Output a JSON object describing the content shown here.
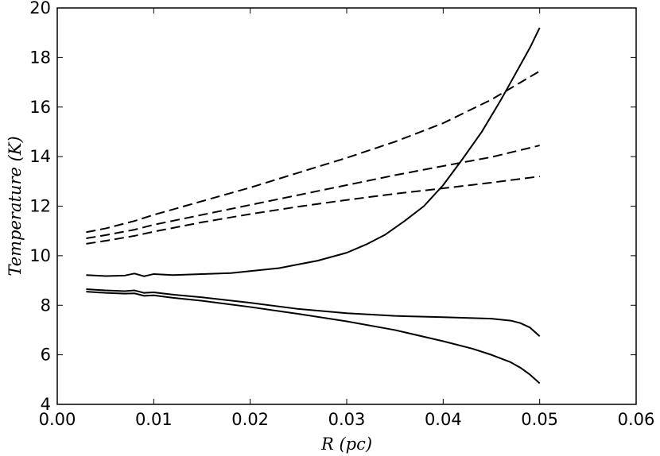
{
  "chart_data": {
    "type": "line",
    "title": "",
    "xlabel": "R (pc)",
    "ylabel": "Temperature (K)",
    "xlim": [
      0.0,
      0.06
    ],
    "ylim": [
      4,
      20
    ],
    "xticks": [
      "0.00",
      "0.01",
      "0.02",
      "0.03",
      "0.04",
      "0.05",
      "0.06"
    ],
    "yticks": [
      "4",
      "6",
      "8",
      "10",
      "12",
      "14",
      "16",
      "18",
      "20"
    ],
    "grid": false,
    "legend": false,
    "series": [
      {
        "style": "solid",
        "x": [
          0.003,
          0.005,
          0.007,
          0.008,
          0.009,
          0.01,
          0.012,
          0.015,
          0.018,
          0.02,
          0.023,
          0.025,
          0.027,
          0.03,
          0.032,
          0.034,
          0.036,
          0.038,
          0.04,
          0.042,
          0.044,
          0.046,
          0.047,
          0.048,
          0.049,
          0.05
        ],
        "y": [
          9.22,
          9.18,
          9.2,
          9.28,
          9.17,
          9.26,
          9.22,
          9.26,
          9.3,
          9.38,
          9.5,
          9.65,
          9.8,
          10.12,
          10.45,
          10.85,
          11.4,
          12.0,
          12.85,
          13.9,
          15.0,
          16.3,
          17.0,
          17.7,
          18.4,
          19.2
        ]
      },
      {
        "style": "solid",
        "x": [
          0.003,
          0.005,
          0.007,
          0.008,
          0.009,
          0.01,
          0.012,
          0.015,
          0.02,
          0.025,
          0.03,
          0.035,
          0.04,
          0.045,
          0.047,
          0.048,
          0.049,
          0.05
        ],
        "y": [
          8.65,
          8.6,
          8.57,
          8.6,
          8.5,
          8.52,
          8.43,
          8.32,
          8.1,
          7.85,
          7.68,
          7.57,
          7.52,
          7.46,
          7.38,
          7.28,
          7.1,
          6.75
        ]
      },
      {
        "style": "solid",
        "x": [
          0.003,
          0.005,
          0.007,
          0.008,
          0.009,
          0.01,
          0.012,
          0.015,
          0.02,
          0.025,
          0.03,
          0.035,
          0.04,
          0.043,
          0.045,
          0.047,
          0.048,
          0.049,
          0.05
        ],
        "y": [
          8.55,
          8.5,
          8.47,
          8.48,
          8.38,
          8.4,
          8.3,
          8.18,
          7.93,
          7.65,
          7.35,
          7.0,
          6.55,
          6.25,
          6.0,
          5.7,
          5.48,
          5.2,
          4.85
        ]
      },
      {
        "style": "dashed",
        "x": [
          0.003,
          0.005,
          0.008,
          0.01,
          0.015,
          0.02,
          0.025,
          0.03,
          0.035,
          0.04,
          0.045,
          0.05
        ],
        "y": [
          10.95,
          11.1,
          11.4,
          11.65,
          12.2,
          12.75,
          13.35,
          13.95,
          14.6,
          15.35,
          16.3,
          17.45
        ]
      },
      {
        "style": "dashed",
        "x": [
          0.003,
          0.005,
          0.008,
          0.01,
          0.015,
          0.02,
          0.025,
          0.03,
          0.035,
          0.04,
          0.045,
          0.05
        ],
        "y": [
          10.7,
          10.83,
          11.05,
          11.25,
          11.65,
          12.05,
          12.45,
          12.85,
          13.25,
          13.62,
          13.98,
          14.45
        ]
      },
      {
        "style": "dashed",
        "x": [
          0.003,
          0.005,
          0.008,
          0.01,
          0.015,
          0.02,
          0.025,
          0.03,
          0.035,
          0.04,
          0.045,
          0.05
        ],
        "y": [
          10.48,
          10.6,
          10.8,
          10.97,
          11.35,
          11.68,
          11.98,
          12.25,
          12.5,
          12.72,
          12.95,
          13.2
        ]
      }
    ]
  }
}
